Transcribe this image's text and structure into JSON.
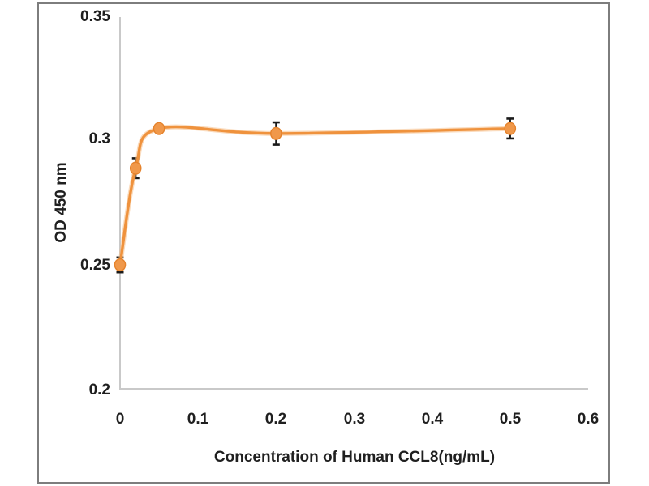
{
  "chart_data": {
    "type": "line",
    "title": "",
    "xlabel": "Concentration of Human CCL8(ng/mL)",
    "ylabel": "OD 450 nm",
    "x": [
      0,
      0.02,
      0.05,
      0.2,
      0.5
    ],
    "y": [
      0.25,
      0.289,
      0.305,
      0.303,
      0.305
    ],
    "y_err": [
      0.003,
      0.004,
      0.0015,
      0.0045,
      0.004
    ],
    "xlim": [
      0,
      0.6
    ],
    "ylim": [
      0.2,
      0.35
    ],
    "x_ticks": [
      "0",
      "0.1",
      "0.2",
      "0.3",
      "0.4",
      "0.5",
      "0.6"
    ],
    "y_ticks": [
      "0.2",
      "0.25",
      "0.3",
      "0.35"
    ],
    "grid": "off",
    "legend": "none",
    "smooth": true,
    "colors": {
      "line": "#EF923D",
      "line_halo": "#F6BD87",
      "marker_fill": "#F0984A",
      "marker_stroke": "#E5822B",
      "error_bar": "#1a1a1a",
      "axis_line": "#c9c9c9",
      "text": "#1f1f1f",
      "frame_border": "#7d7d7d"
    }
  }
}
